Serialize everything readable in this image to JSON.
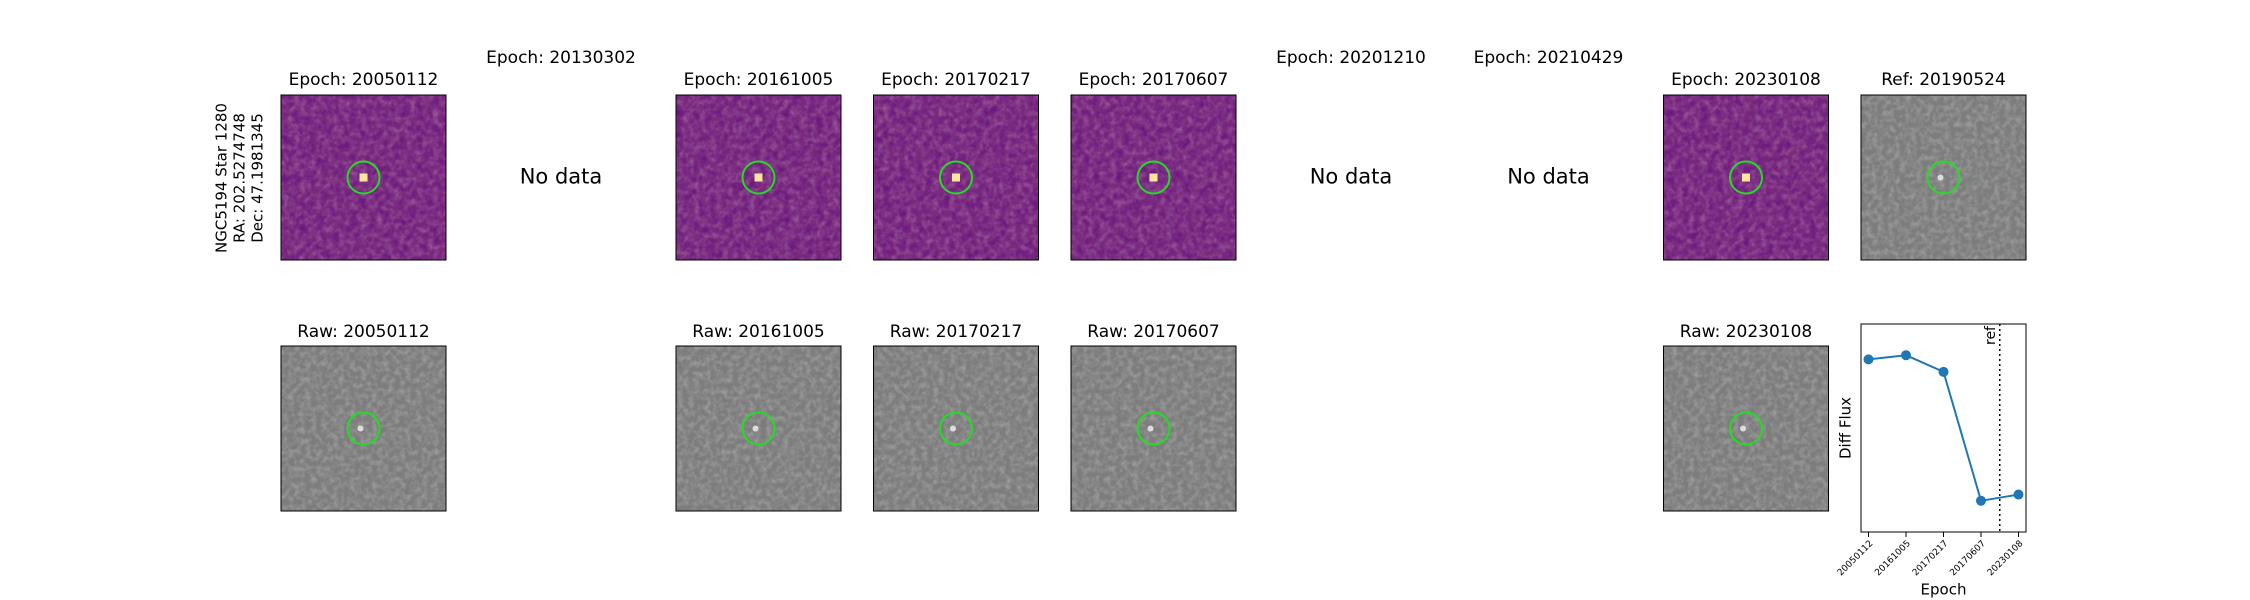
{
  "label": [
    "NGC5194 Star 1280",
    "RA: 202.5274748",
    "Dec: 47.1981345"
  ],
  "panels": [
    {
      "title": "Epoch: 20050112",
      "raw_title": "Raw: 20050112",
      "colormap": "magma"
    },
    {
      "title": "Epoch: 20130302",
      "note": "No data"
    },
    {
      "title": "Epoch: 20161005",
      "raw_title": "Raw: 20161005",
      "colormap": "magma"
    },
    {
      "title": "Epoch: 20170217",
      "raw_title": "Raw: 20170217",
      "colormap": "magma"
    },
    {
      "title": "Epoch: 20170607",
      "raw_title": "Raw: 20170607",
      "colormap": "magma"
    },
    {
      "title": "Epoch: 20201210",
      "note": "No data"
    },
    {
      "title": "Epoch: 20210429",
      "note": "No data"
    },
    {
      "title": "Epoch: 20230108",
      "raw_title": "Raw: 20230108",
      "colormap": "magma"
    }
  ],
  "reference": {
    "title": "Ref: 20190524",
    "colormap": "gray"
  },
  "chart_data": {
    "type": "line",
    "x_label": "Epoch",
    "y_label": "Diff Flux",
    "categories": [
      "20050112",
      "20161005",
      "20170217",
      "20170607",
      "20230108"
    ],
    "values": [
      0.83,
      0.85,
      0.77,
      0.15,
      0.18
    ],
    "color": "#1f77b4",
    "xlim": [
      -0.2,
      4.2
    ],
    "ylim": [
      0,
      1
    ],
    "ref_x": 3.5,
    "ref_label": "ref"
  }
}
